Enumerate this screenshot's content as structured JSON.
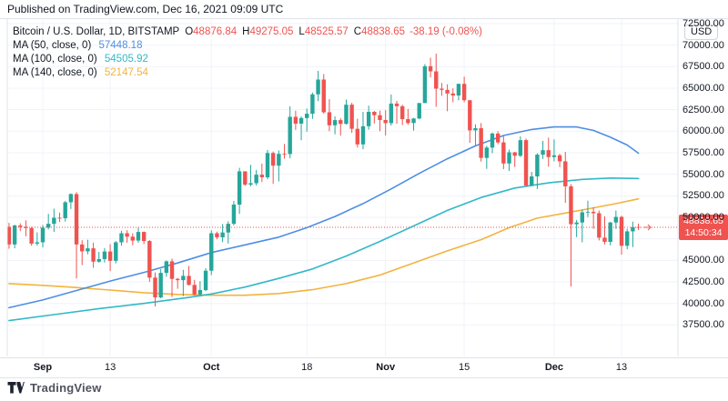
{
  "published_bar": {
    "text": "Published on TradingView.com, Dec 16, 2021 09:09 UTC"
  },
  "legend": {
    "title": "Bitcoin / U.S. Dollar, 1D, BITSTAMP",
    "ohlc": {
      "o_label": "O",
      "o": "48876.84",
      "h_label": "H",
      "h": "49275.05",
      "l_label": "L",
      "l": "48525.57",
      "c_label": "C",
      "c": "48838.65",
      "change": "-38.19 (-0.08%)"
    },
    "indicators": [
      {
        "label": "MA (50, close, 0)",
        "value": "57448.18"
      },
      {
        "label": "MA (100, close, 0)",
        "value": "54505.92"
      },
      {
        "label": "MA (140, close, 0)",
        "value": "52147.54"
      }
    ]
  },
  "price_axis": {
    "currency_badge": "USD",
    "last_price": "48838.65",
    "countdown": "14:50:34"
  },
  "watermark": {
    "brand": "TradingView"
  },
  "colors": {
    "up": "#26a69a",
    "down": "#ef5350",
    "ma50": "#4e8ee3",
    "ma100": "#33b8c7",
    "ma140": "#f3b33e",
    "grid": "#f0f3fa",
    "border": "#e0e3eb",
    "text": "#131722",
    "price_line": "#ef5350",
    "badge_bg": "#ef5350"
  },
  "chart_data": {
    "type": "candlestick",
    "symbol": "Bitcoin / U.S. Dollar",
    "interval": "1D",
    "exchange": "BITSTAMP",
    "y_axis": {
      "min": 37500,
      "max": 72500,
      "tick_step": 2500,
      "tick_labels": [
        "72500.00",
        "70000.00",
        "67500.00",
        "65000.00",
        "62500.00",
        "60000.00",
        "57500.00",
        "55000.00",
        "52500.00",
        "50000.00",
        "45000.00",
        "42500.00",
        "40000.00",
        "37500.00"
      ],
      "tick_values": [
        72500,
        70000,
        67500,
        65000,
        62500,
        60000,
        57500,
        55000,
        52500,
        50000,
        45000,
        42500,
        40000,
        37500
      ],
      "grid_values": [
        72500,
        70000,
        67500,
        65000,
        62500,
        60000,
        57500,
        55000,
        52500,
        50000,
        47500,
        45000,
        42500,
        40000,
        37500
      ]
    },
    "x_axis": {
      "first_candle_date": "Aug 26 2021",
      "last_candle_date": "Dec 16 2021",
      "ticks": [
        {
          "label": "Sep",
          "i": 6,
          "bold": true
        },
        {
          "label": "13",
          "i": 18,
          "bold": false
        },
        {
          "label": "Oct",
          "i": 36,
          "bold": true
        },
        {
          "label": "18",
          "i": 53,
          "bold": false
        },
        {
          "label": "Nov",
          "i": 67,
          "bold": true
        },
        {
          "label": "15",
          "i": 81,
          "bold": false
        },
        {
          "label": "Dec",
          "i": 97,
          "bold": true
        },
        {
          "label": "13",
          "i": 109,
          "bold": false
        }
      ]
    },
    "last_price": 48838.65,
    "candles": [
      [
        "Aug 26",
        48900,
        49350,
        46350,
        46850
      ],
      [
        "Aug 27",
        46850,
        49150,
        46400,
        49050
      ],
      [
        "Aug 28",
        49050,
        49300,
        48400,
        48900
      ],
      [
        "Aug 29",
        48900,
        49650,
        47800,
        48750
      ],
      [
        "Aug 30",
        48750,
        48900,
        46700,
        46950
      ],
      [
        "Aug 31",
        46950,
        48250,
        46700,
        47100
      ],
      [
        "Sep 1",
        47100,
        49100,
        46500,
        48800
      ],
      [
        "Sep 2",
        48800,
        50400,
        48600,
        49250
      ],
      [
        "Sep 3",
        49250,
        51000,
        48300,
        49950
      ],
      [
        "Sep 4",
        49950,
        50550,
        49450,
        49900
      ],
      [
        "Sep 5",
        49900,
        51900,
        49500,
        51750
      ],
      [
        "Sep 6",
        51750,
        52780,
        50970,
        52700
      ],
      [
        "Sep 7",
        52700,
        52920,
        42900,
        46850
      ],
      [
        "Sep 8",
        46850,
        47340,
        44450,
        46050
      ],
      [
        "Sep 9",
        46050,
        47400,
        45700,
        46400
      ],
      [
        "Sep 10",
        46400,
        47050,
        44150,
        44850
      ],
      [
        "Sep 11",
        44850,
        45980,
        44720,
        45150
      ],
      [
        "Sep 12",
        45150,
        46430,
        44750,
        46030
      ],
      [
        "Sep 13",
        46030,
        46880,
        43750,
        44950
      ],
      [
        "Sep 14",
        44950,
        47250,
        44650,
        47100
      ],
      [
        "Sep 15",
        47100,
        48450,
        46700,
        48150
      ],
      [
        "Sep 16",
        48150,
        48500,
        47050,
        47750
      ],
      [
        "Sep 17",
        47750,
        48150,
        46750,
        47300
      ],
      [
        "Sep 18",
        47300,
        48800,
        47050,
        48300
      ],
      [
        "Sep 19",
        48300,
        48350,
        46880,
        47250
      ],
      [
        "Sep 20",
        47250,
        47350,
        42500,
        43000
      ],
      [
        "Sep 21",
        43000,
        43600,
        39650,
        40700
      ],
      [
        "Sep 22",
        40700,
        44000,
        40600,
        43550
      ],
      [
        "Sep 23",
        43550,
        44990,
        43100,
        44890
      ],
      [
        "Sep 24",
        44890,
        45200,
        40750,
        42850
      ],
      [
        "Sep 25",
        42850,
        42980,
        41700,
        42700
      ],
      [
        "Sep 26",
        42700,
        43900,
        40850,
        43200
      ],
      [
        "Sep 27",
        43200,
        44350,
        42100,
        42150
      ],
      [
        "Sep 28",
        42150,
        42750,
        40930,
        41050
      ],
      [
        "Sep 29",
        41050,
        42590,
        40800,
        41550
      ],
      [
        "Sep 30",
        41550,
        44100,
        41420,
        43800
      ],
      [
        "Oct 1",
        43800,
        48500,
        43290,
        48150
      ],
      [
        "Oct 2",
        48150,
        48340,
        47460,
        47680
      ],
      [
        "Oct 3",
        47680,
        49230,
        47120,
        48240
      ],
      [
        "Oct 4",
        48240,
        49540,
        46950,
        49250
      ],
      [
        "Oct 5",
        49250,
        51900,
        49060,
        51480
      ],
      [
        "Oct 6",
        51480,
        55750,
        50400,
        55340
      ],
      [
        "Oct 7",
        55340,
        55350,
        53650,
        53800
      ],
      [
        "Oct 8",
        53800,
        56100,
        53600,
        53960
      ],
      [
        "Oct 9",
        53960,
        55500,
        53700,
        54950
      ],
      [
        "Oct 10",
        54950,
        56250,
        54100,
        54650
      ],
      [
        "Oct 11",
        54650,
        57830,
        54420,
        57470
      ],
      [
        "Oct 12",
        57470,
        57640,
        53880,
        56000
      ],
      [
        "Oct 13",
        56000,
        57770,
        54170,
        57370
      ],
      [
        "Oct 14",
        57370,
        58520,
        56810,
        57350
      ],
      [
        "Oct 15",
        57350,
        62900,
        56850,
        61670
      ],
      [
        "Oct 16",
        61670,
        62380,
        60150,
        60880
      ],
      [
        "Oct 17",
        60880,
        61720,
        58960,
        61530
      ],
      [
        "Oct 18",
        61530,
        62630,
        59950,
        62030
      ],
      [
        "Oct 19",
        62030,
        64480,
        61430,
        64280
      ],
      [
        "Oct 20",
        64280,
        67000,
        63500,
        66000
      ],
      [
        "Oct 21",
        66000,
        66640,
        62050,
        62200
      ],
      [
        "Oct 22",
        62200,
        63720,
        60000,
        60690
      ],
      [
        "Oct 23",
        60690,
        61730,
        59640,
        61290
      ],
      [
        "Oct 24",
        61290,
        61500,
        59500,
        60850
      ],
      [
        "Oct 25",
        60850,
        63680,
        60780,
        63080
      ],
      [
        "Oct 26",
        63080,
        63290,
        59800,
        60280
      ],
      [
        "Oct 27",
        60280,
        61450,
        58100,
        58470
      ],
      [
        "Oct 28",
        58470,
        62250,
        57900,
        60580
      ],
      [
        "Oct 29",
        60580,
        62970,
        60170,
        62250
      ],
      [
        "Oct 30",
        62250,
        62350,
        60900,
        61860
      ],
      [
        "Oct 31",
        61860,
        62400,
        60000,
        61300
      ],
      [
        "Nov 1",
        61300,
        62450,
        59510,
        60940
      ],
      [
        "Nov 2",
        60940,
        64270,
        60660,
        63210
      ],
      [
        "Nov 3",
        63210,
        63530,
        60880,
        62900
      ],
      [
        "Nov 4",
        62900,
        63080,
        60720,
        61400
      ],
      [
        "Nov 5",
        61400,
        62590,
        60730,
        60950
      ],
      [
        "Nov 6",
        60950,
        61550,
        60070,
        61480
      ],
      [
        "Nov 7",
        61480,
        63280,
        61380,
        63270
      ],
      [
        "Nov 8",
        63270,
        67790,
        63270,
        67550
      ],
      [
        "Nov 9",
        67550,
        68530,
        66250,
        66950
      ],
      [
        "Nov 10",
        66950,
        69000,
        62830,
        64940
      ],
      [
        "Nov 11",
        64940,
        65600,
        64110,
        64800
      ],
      [
        "Nov 12",
        64800,
        65450,
        62320,
        64380
      ],
      [
        "Nov 13",
        64380,
        64980,
        63360,
        64150
      ],
      [
        "Nov 14",
        64150,
        65510,
        63580,
        65500
      ],
      [
        "Nov 15",
        65500,
        66340,
        63360,
        63600
      ],
      [
        "Nov 16",
        63600,
        63600,
        58640,
        60100
      ],
      [
        "Nov 17",
        60100,
        60800,
        58370,
        60350
      ],
      [
        "Nov 18",
        60350,
        60950,
        56470,
        56900
      ],
      [
        "Nov 19",
        56900,
        58320,
        55630,
        58100
      ],
      [
        "Nov 20",
        58100,
        59850,
        57450,
        59730
      ],
      [
        "Nov 21",
        59730,
        60000,
        58490,
        58700
      ],
      [
        "Nov 22",
        58700,
        59440,
        55600,
        56250
      ],
      [
        "Nov 23",
        56250,
        57870,
        55390,
        57550
      ],
      [
        "Nov 24",
        57550,
        57590,
        55840,
        57150
      ],
      [
        "Nov 25",
        57150,
        59400,
        57000,
        58960
      ],
      [
        "Nov 26",
        58960,
        59150,
        53520,
        53700
      ],
      [
        "Nov 27",
        53700,
        55280,
        53610,
        54750
      ],
      [
        "Nov 28",
        54750,
        57430,
        53290,
        57280
      ],
      [
        "Nov 29",
        57280,
        58880,
        56780,
        57800
      ],
      [
        "Nov 30",
        57800,
        59250,
        55880,
        57000
      ],
      [
        "Dec 1",
        57000,
        59050,
        56500,
        57200
      ],
      [
        "Dec 2",
        57200,
        57380,
        55830,
        56500
      ],
      [
        "Dec 3",
        56500,
        57600,
        51680,
        53600
      ],
      [
        "Dec 4",
        53600,
        53860,
        41967,
        49200
      ],
      [
        "Dec 5",
        49200,
        49700,
        47700,
        49400
      ],
      [
        "Dec 6",
        49400,
        50890,
        47100,
        50580
      ],
      [
        "Dec 7",
        50580,
        51930,
        50030,
        50640
      ],
      [
        "Dec 8",
        50640,
        51180,
        48660,
        50480
      ],
      [
        "Dec 9",
        50480,
        50790,
        47320,
        47640
      ],
      [
        "Dec 10",
        47640,
        50100,
        46850,
        47150
      ],
      [
        "Dec 11",
        47150,
        49470,
        46750,
        49400
      ],
      [
        "Dec 12",
        49400,
        50780,
        48660,
        50050
      ],
      [
        "Dec 13",
        50050,
        50190,
        45670,
        46700
      ],
      [
        "Dec 14",
        46700,
        48670,
        46290,
        48370
      ],
      [
        "Dec 15",
        48370,
        49500,
        46540,
        48870
      ],
      [
        "Dec 16",
        48876.84,
        49275.05,
        48525.57,
        48838.65
      ]
    ],
    "moving_averages": [
      {
        "name": "MA 50",
        "period": 50,
        "color_key": "ma50",
        "points": [
          [
            0,
            39500
          ],
          [
            6,
            40400
          ],
          [
            12,
            41500
          ],
          [
            18,
            42600
          ],
          [
            24,
            43600
          ],
          [
            30,
            44700
          ],
          [
            36,
            45900
          ],
          [
            42,
            46800
          ],
          [
            48,
            47700
          ],
          [
            53,
            48800
          ],
          [
            58,
            50100
          ],
          [
            63,
            51600
          ],
          [
            68,
            53300
          ],
          [
            73,
            55100
          ],
          [
            78,
            56800
          ],
          [
            83,
            58300
          ],
          [
            88,
            59500
          ],
          [
            93,
            60200
          ],
          [
            97,
            60500
          ],
          [
            101,
            60500
          ],
          [
            104,
            60100
          ],
          [
            107,
            59300
          ],
          [
            110,
            58400
          ],
          [
            112,
            57448.18
          ]
        ]
      },
      {
        "name": "MA 100",
        "period": 100,
        "color_key": "ma100",
        "points": [
          [
            0,
            38000
          ],
          [
            8,
            38700
          ],
          [
            16,
            39400
          ],
          [
            24,
            40000
          ],
          [
            32,
            40700
          ],
          [
            36,
            41100
          ],
          [
            42,
            41900
          ],
          [
            48,
            42900
          ],
          [
            54,
            44000
          ],
          [
            60,
            45500
          ],
          [
            66,
            47200
          ],
          [
            72,
            49000
          ],
          [
            78,
            50800
          ],
          [
            84,
            52300
          ],
          [
            90,
            53400
          ],
          [
            96,
            54000
          ],
          [
            102,
            54400
          ],
          [
            107,
            54560
          ],
          [
            112,
            54505.92
          ]
        ]
      },
      {
        "name": "MA 140",
        "period": 140,
        "color_key": "ma140",
        "points": [
          [
            0,
            42300
          ],
          [
            6,
            42100
          ],
          [
            12,
            41850
          ],
          [
            18,
            41550
          ],
          [
            24,
            41250
          ],
          [
            30,
            41050
          ],
          [
            36,
            40950
          ],
          [
            42,
            40950
          ],
          [
            48,
            41150
          ],
          [
            54,
            41600
          ],
          [
            60,
            42300
          ],
          [
            66,
            43300
          ],
          [
            72,
            44700
          ],
          [
            78,
            46100
          ],
          [
            84,
            47400
          ],
          [
            89,
            48800
          ],
          [
            94,
            49900
          ],
          [
            99,
            50500
          ],
          [
            104,
            51100
          ],
          [
            108,
            51600
          ],
          [
            112,
            52147.54
          ]
        ]
      }
    ]
  }
}
